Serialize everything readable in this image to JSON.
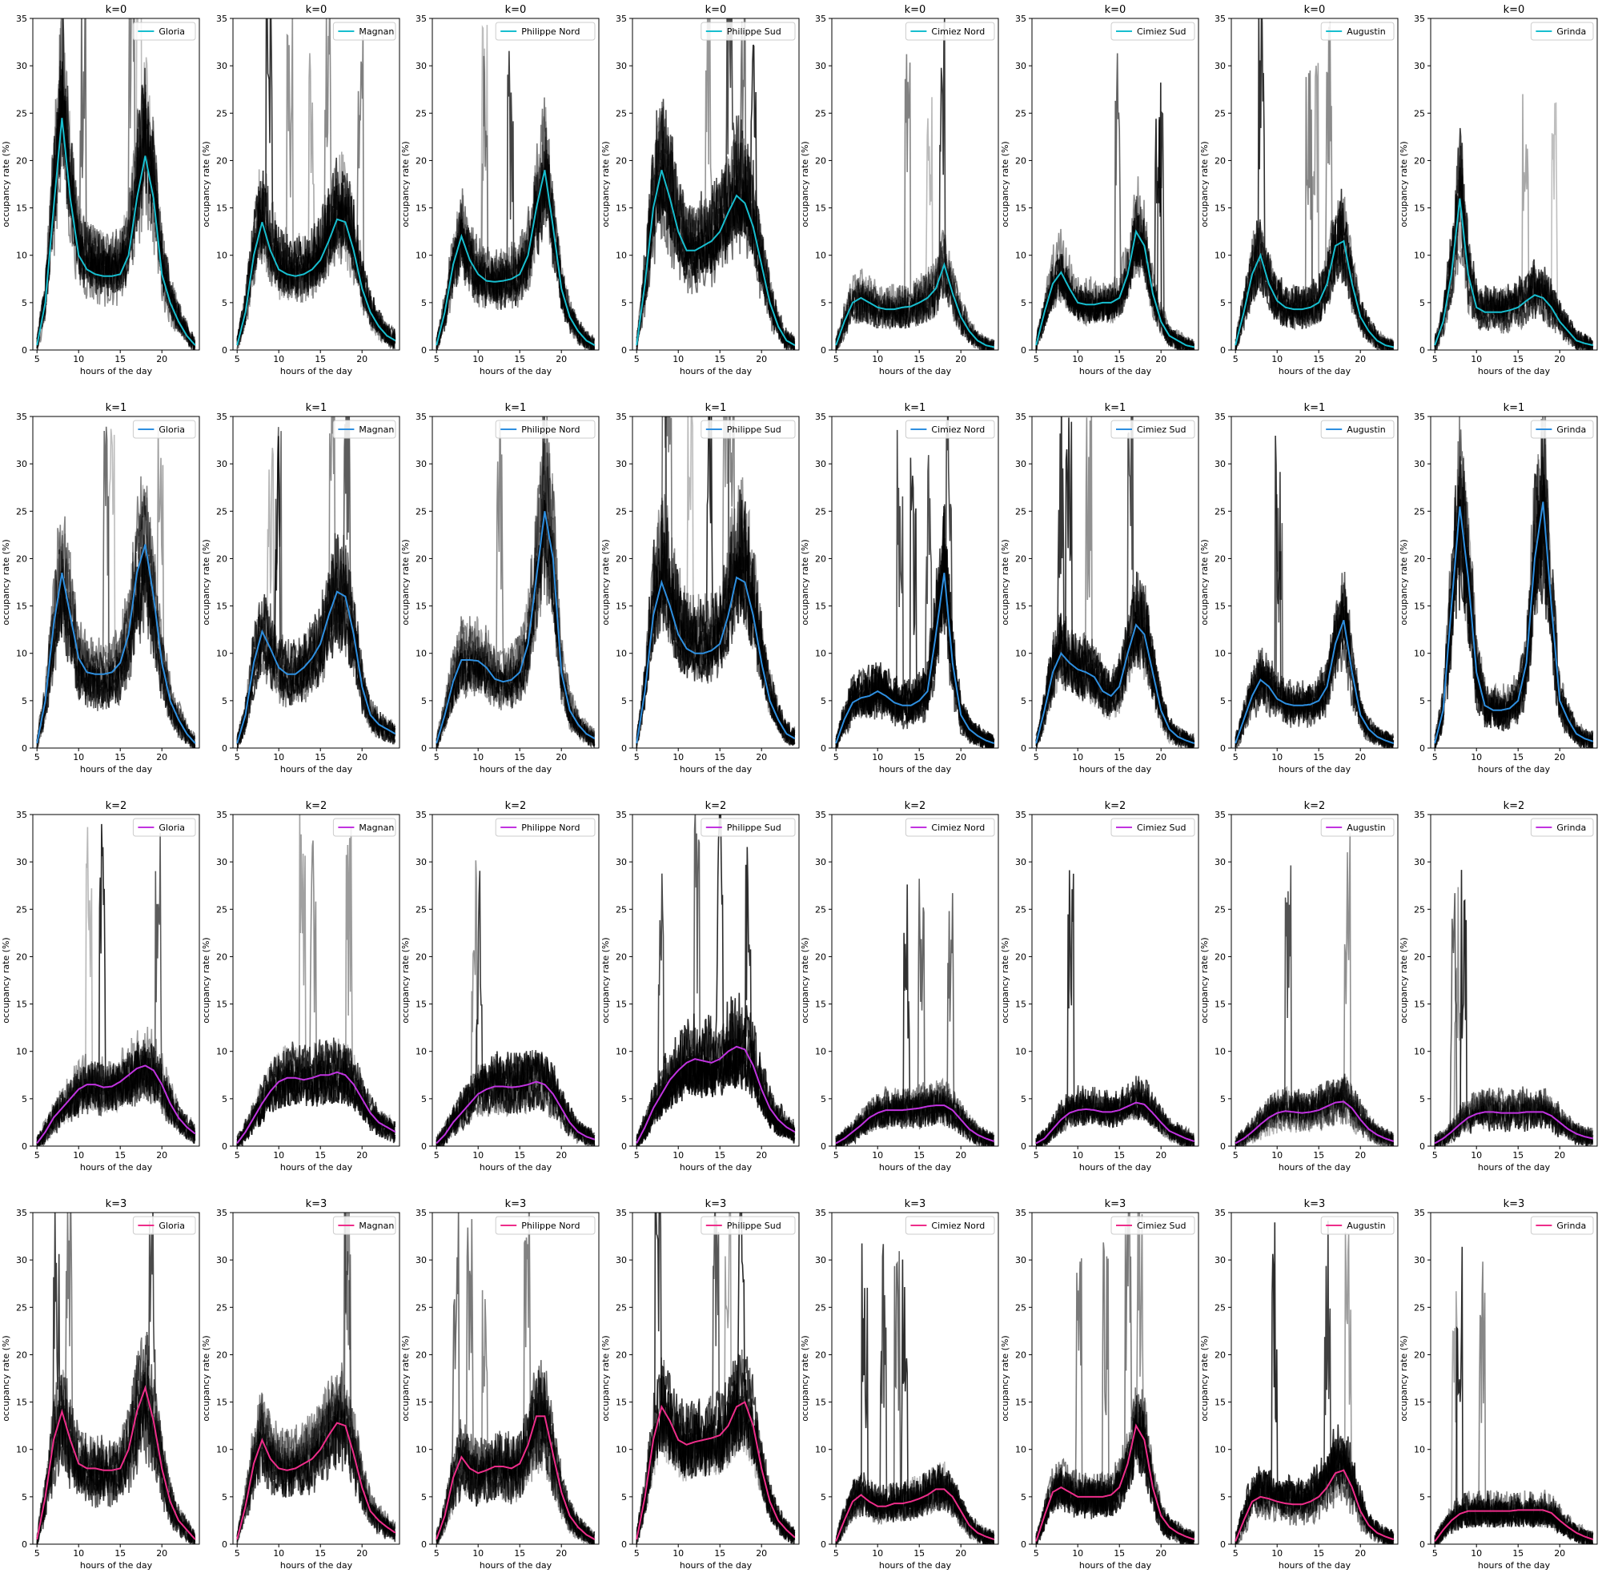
{
  "figure": {
    "rows": [
      {
        "title": "k=0",
        "color": "#17becf"
      },
      {
        "title": "k=1",
        "color": "#2e8fe0"
      },
      {
        "title": "k=2",
        "color": "#c133e0"
      },
      {
        "title": "k=3",
        "color": "#ee2d8a"
      }
    ],
    "colors_note": "mean curve per cluster row; gray/black lines are individual daily profiles"
  },
  "chart_data": {
    "type": "line",
    "layout": "grid 4 rows x 8 columns of small multiples",
    "xlabel": "hours of the day",
    "ylabel": "occupancy rate (%)",
    "xlim": [
      4.5,
      24.5
    ],
    "ylim": [
      0,
      35
    ],
    "xticks": [
      5,
      10,
      15,
      20
    ],
    "yticks": [
      0,
      5,
      10,
      15,
      20,
      25,
      30,
      35
    ],
    "legend_position": "top-right",
    "parkings": [
      "Gloria",
      "Magnan",
      "Philippe Nord",
      "Philippe Sud",
      "Cimiez Nord",
      "Cimiez Sud",
      "Augustin",
      "Grinda"
    ],
    "mean_curves": {
      "hours": [
        5,
        6,
        7,
        8,
        9,
        10,
        11,
        12,
        13,
        14,
        15,
        16,
        17,
        18,
        19,
        20,
        21,
        22,
        23,
        24
      ],
      "k=0": [
        [
          0.5,
          5,
          15,
          24.5,
          16,
          10,
          8.5,
          8,
          7.8,
          7.8,
          8,
          10,
          16,
          20.5,
          16,
          8,
          5,
          3,
          1.5,
          0.5
        ],
        [
          0.5,
          4,
          10,
          13.5,
          10.5,
          8.5,
          8,
          7.8,
          8,
          8.5,
          9.5,
          11.5,
          13.8,
          13.5,
          10.5,
          6.5,
          4,
          2.5,
          1.5,
          1
        ],
        [
          0.5,
          4,
          9,
          12,
          9.5,
          8,
          7.3,
          7.2,
          7.3,
          7.5,
          8,
          10,
          15,
          19,
          13,
          6.5,
          3.5,
          2,
          1,
          0.5
        ],
        [
          0.5,
          7,
          15,
          19,
          16,
          12.5,
          10.5,
          10.5,
          11,
          11.5,
          12.5,
          14.5,
          16.3,
          15.5,
          13,
          9,
          5,
          2.5,
          1,
          0.5
        ],
        [
          0.5,
          3,
          5,
          5.5,
          5,
          4.5,
          4.3,
          4.3,
          4.5,
          4.6,
          5,
          5.5,
          6.5,
          9,
          6,
          3.5,
          2,
          1,
          0.5,
          0.3
        ],
        [
          0.5,
          4,
          7,
          8.2,
          6.5,
          5,
          4.8,
          4.8,
          5,
          5,
          5.5,
          8,
          12.5,
          11,
          6,
          3,
          1.5,
          1,
          0.5,
          0.3
        ],
        [
          0.5,
          4,
          8,
          10,
          7,
          5.2,
          4.5,
          4.3,
          4.3,
          4.5,
          5,
          7,
          11,
          11.5,
          7,
          3.5,
          2,
          1,
          0.5,
          0.3
        ],
        [
          0.5,
          3,
          8,
          16,
          8,
          4.5,
          4,
          4,
          4,
          4.2,
          4.5,
          5.2,
          5.8,
          5.5,
          4.5,
          3,
          2,
          1,
          0.7,
          0.5
        ]
      ],
      "k=1": [
        [
          0.5,
          5,
          13,
          18.5,
          14,
          9.5,
          8,
          7.8,
          7.8,
          8,
          9,
          12,
          18.5,
          21.5,
          16,
          9,
          5,
          3,
          1.5,
          0.5
        ],
        [
          0.5,
          3.5,
          9,
          12.3,
          10.5,
          8.5,
          7.8,
          7.8,
          8.5,
          9.5,
          11,
          14,
          16.5,
          16,
          12,
          6.5,
          3.5,
          2.5,
          2,
          1.5
        ],
        [
          0.5,
          3.5,
          7,
          9.3,
          9.3,
          9.2,
          8.5,
          7.3,
          7,
          7.2,
          8,
          11,
          18,
          25,
          20,
          8,
          4,
          2.5,
          1.5,
          1
        ],
        [
          0.5,
          6,
          14,
          17.5,
          15,
          12,
          10.5,
          10,
          10,
          10.3,
          11,
          14,
          18,
          17.5,
          14,
          9,
          5,
          3,
          1.5,
          1
        ],
        [
          0.5,
          3,
          4.8,
          5.3,
          5.5,
          6,
          5.5,
          4.8,
          4.5,
          4.5,
          5,
          6,
          12,
          18.5,
          9,
          3.5,
          2,
          1.3,
          0.8,
          0.5
        ],
        [
          0.5,
          4,
          8,
          10,
          9,
          8.3,
          8,
          7.5,
          6,
          5.5,
          6.5,
          10,
          13,
          12,
          8,
          4,
          2,
          1.2,
          0.8,
          0.5
        ],
        [
          0.5,
          3,
          5.5,
          7.2,
          6.5,
          5.2,
          4.7,
          4.5,
          4.5,
          4.6,
          5,
          6.5,
          11,
          13.5,
          8,
          3.5,
          2,
          1.2,
          0.8,
          0.5
        ],
        [
          0.5,
          4,
          15,
          25.5,
          18,
          8,
          4.5,
          4,
          4,
          4.2,
          5,
          9,
          20,
          26,
          15,
          5,
          3,
          1.5,
          1,
          0.7
        ]
      ],
      "k=2": [
        [
          0.3,
          1.5,
          3,
          4,
          5,
          6,
          6.5,
          6.5,
          6.2,
          6.3,
          6.8,
          7.5,
          8.2,
          8.5,
          8,
          6.5,
          4.5,
          3,
          2,
          1.3
        ],
        [
          0.3,
          1.5,
          3,
          4.5,
          5.8,
          6.8,
          7.2,
          7.2,
          7,
          7.2,
          7.5,
          7.5,
          7.8,
          7.5,
          6.5,
          5,
          3.5,
          2.5,
          2,
          1.5
        ],
        [
          0.3,
          1.2,
          2.5,
          3.5,
          4.5,
          5.5,
          6,
          6.3,
          6.3,
          6.2,
          6.3,
          6.5,
          6.8,
          6.5,
          5.5,
          4,
          2.5,
          1.5,
          1,
          0.7
        ],
        [
          0.3,
          2,
          4,
          5.5,
          7,
          8,
          8.8,
          9.2,
          9,
          8.8,
          9.2,
          10,
          10.5,
          10.2,
          8.5,
          6,
          4,
          2.8,
          2,
          1.5
        ],
        [
          0.3,
          0.8,
          1.5,
          2.2,
          3,
          3.5,
          3.8,
          3.8,
          3.8,
          3.9,
          4,
          4.2,
          4.3,
          4.3,
          3.8,
          2.8,
          1.8,
          1.2,
          0.8,
          0.5
        ],
        [
          0.3,
          0.8,
          1.8,
          2.8,
          3.5,
          3.8,
          3.9,
          3.8,
          3.6,
          3.6,
          3.8,
          4.2,
          4.6,
          4.4,
          3.5,
          2.5,
          1.6,
          1.2,
          0.8,
          0.5
        ],
        [
          0.3,
          0.8,
          1.5,
          2.3,
          3,
          3.5,
          3.7,
          3.6,
          3.5,
          3.6,
          3.8,
          4.2,
          4.6,
          4.7,
          4,
          2.8,
          1.8,
          1.2,
          0.8,
          0.5
        ],
        [
          0.3,
          0.8,
          1.5,
          2.3,
          3,
          3.4,
          3.6,
          3.6,
          3.5,
          3.5,
          3.5,
          3.6,
          3.6,
          3.6,
          3.2,
          2.5,
          1.8,
          1.3,
          1,
          0.8
        ]
      ],
      "k=3": [
        [
          0.5,
          5,
          11,
          14,
          11,
          8.5,
          8,
          8,
          7.8,
          7.8,
          8,
          10,
          14,
          16.5,
          13,
          8,
          4.5,
          2.5,
          1.5,
          0.5
        ],
        [
          0.5,
          4,
          8.5,
          11,
          9,
          8,
          7.8,
          8,
          8.5,
          9,
          10,
          11.5,
          12.8,
          12.5,
          9.5,
          6,
          3.5,
          2.5,
          1.8,
          1.2
        ],
        [
          0.5,
          3,
          7,
          9.2,
          8,
          7.5,
          7.8,
          8.2,
          8.2,
          8,
          8.5,
          10.5,
          13.5,
          13.5,
          9.5,
          5.5,
          3,
          1.8,
          1,
          0.5
        ],
        [
          0.5,
          5,
          11,
          14.5,
          13,
          11,
          10.5,
          10.8,
          11,
          11.2,
          11.5,
          12.5,
          14.5,
          15,
          12.5,
          8,
          4.5,
          2.5,
          1.5,
          0.7
        ],
        [
          0.3,
          2.5,
          4.5,
          5.2,
          4.5,
          4,
          4,
          4.3,
          4.3,
          4.5,
          4.8,
          5.2,
          5.8,
          5.8,
          5,
          3.5,
          2,
          1.2,
          0.8,
          0.5
        ],
        [
          0.3,
          3,
          5.5,
          6,
          5.5,
          5,
          5,
          5,
          5,
          5.2,
          6,
          8.5,
          12.5,
          11,
          6,
          3,
          1.8,
          1.2,
          0.8,
          0.5
        ],
        [
          0.3,
          2.5,
          4.5,
          5,
          4.8,
          4.5,
          4.3,
          4.2,
          4.2,
          4.5,
          5,
          6,
          7.5,
          7.8,
          6,
          3.5,
          2,
          1.2,
          0.8,
          0.5
        ],
        [
          0.3,
          1.5,
          2.5,
          3.2,
          3.5,
          3.5,
          3.5,
          3.5,
          3.5,
          3.5,
          3.6,
          3.6,
          3.6,
          3.6,
          3.3,
          2.5,
          1.8,
          1.2,
          0.8,
          0.5
        ]
      ]
    }
  }
}
